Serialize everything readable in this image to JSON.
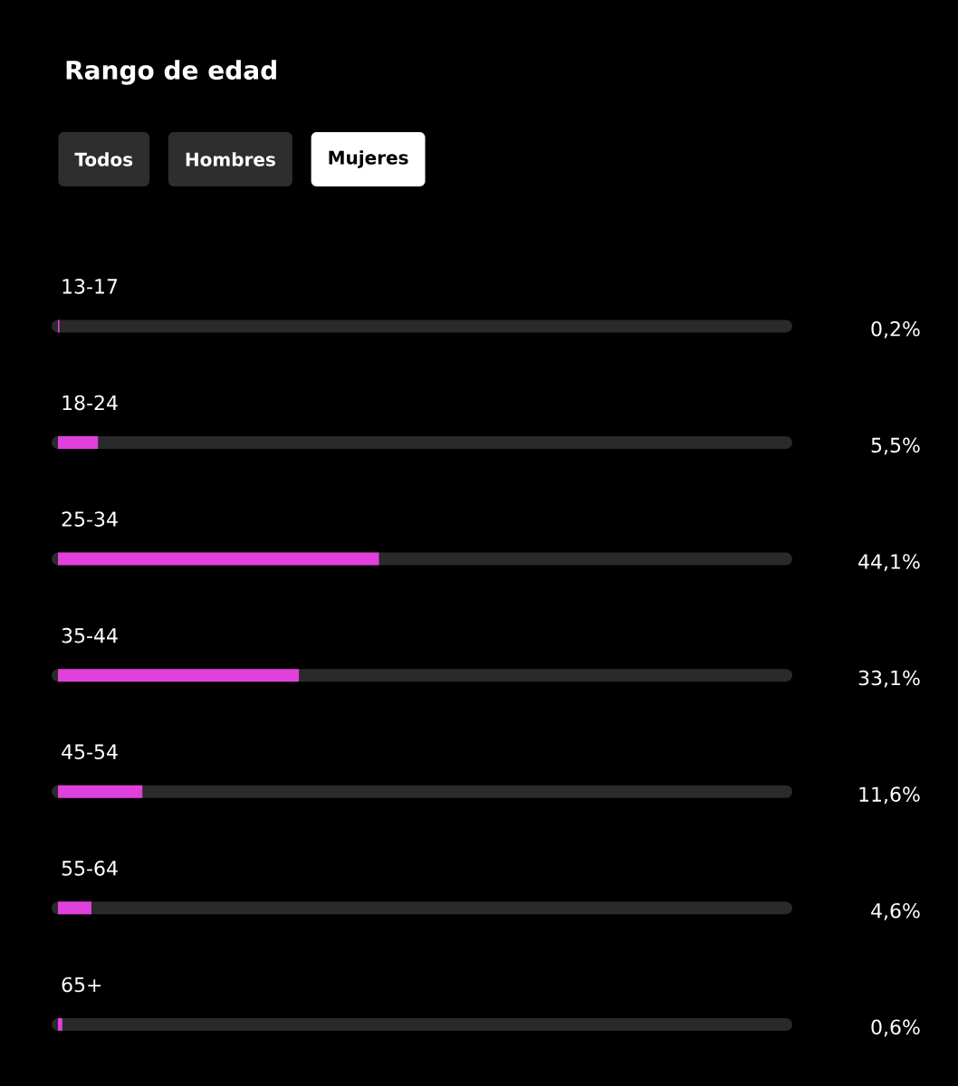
{
  "chart_data": {
    "type": "bar",
    "orientation": "horizontal",
    "title": "Rango de edad",
    "annotations": [
      "Todos",
      "Hombres",
      "Mujeres"
    ],
    "categories": [
      "13-17",
      "18-24",
      "25-34",
      "35-44",
      "45-54",
      "55-64",
      "65+"
    ],
    "values": [
      0.2,
      5.5,
      44.1,
      33.1,
      11.6,
      4.6,
      0.6
    ],
    "value_labels": [
      "0,2%",
      "5,5%",
      "44,1%",
      "33,1%",
      "11,6%",
      "4,6%",
      "0,6%"
    ],
    "color": "#e040dc",
    "xlim": [
      0,
      100
    ],
    "tick_labels": "y"
  }
}
